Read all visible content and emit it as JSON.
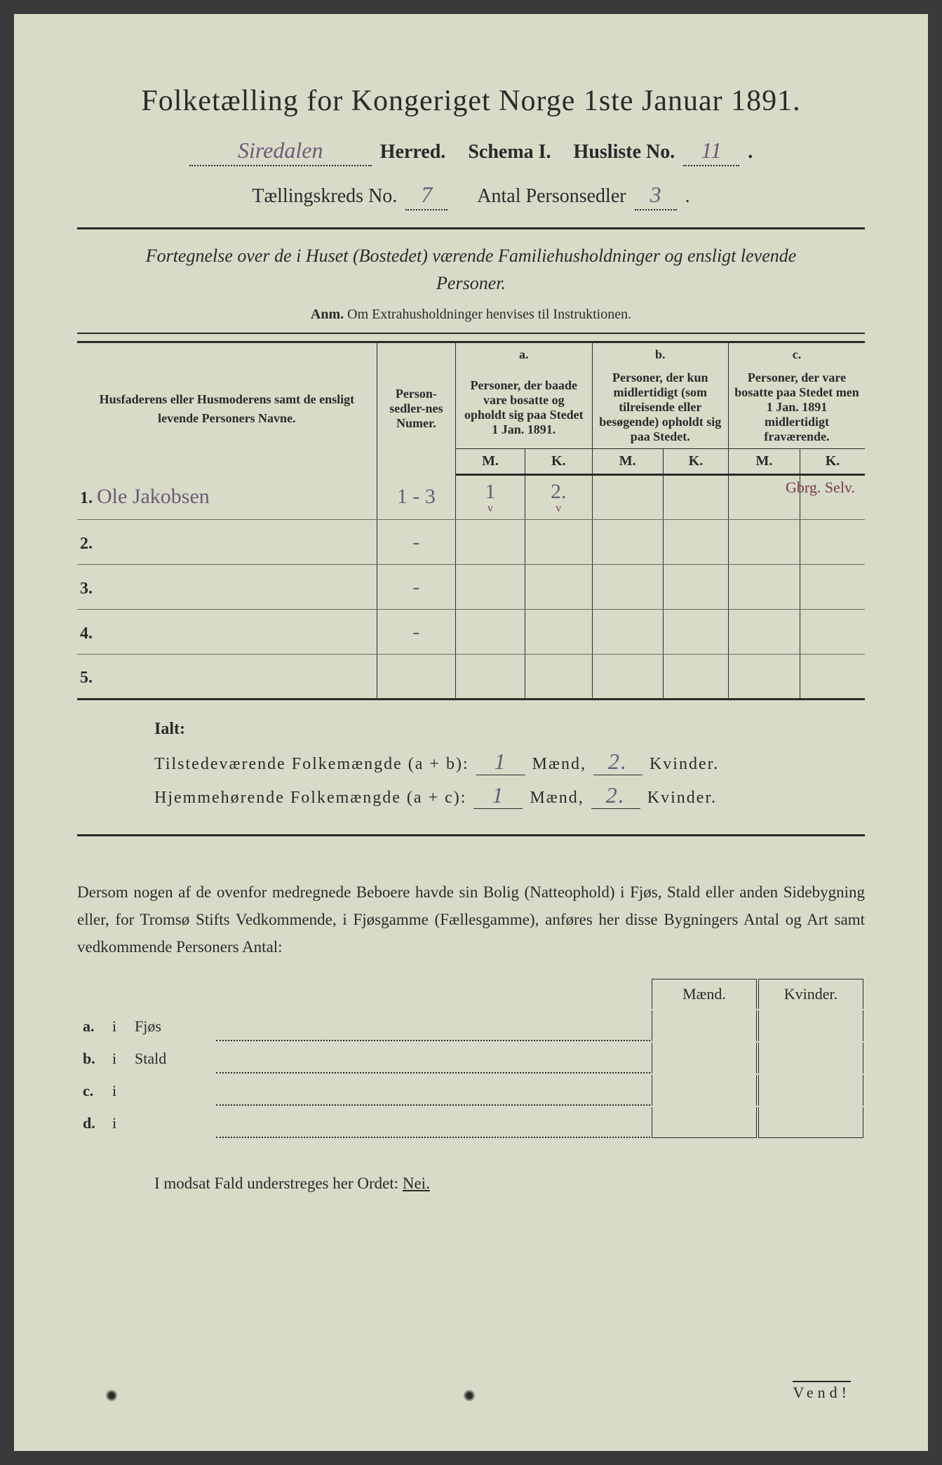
{
  "colors": {
    "paper": "#d8dbc8",
    "ink": "#2a2a2a",
    "handwriting": "#6b5a78",
    "annotation": "#7a3a4a",
    "background": "#3a3a3a"
  },
  "typography": {
    "title_size_pt": 42,
    "body_size_pt": 23,
    "table_header_size_pt": 18,
    "handwritten_size_pt": 30
  },
  "title": "Folketælling for Kongeriget Norge 1ste Januar 1891.",
  "header": {
    "herred_value": "Siredalen",
    "herred_label": "Herred.",
    "schema_label": "Schema I.",
    "husliste_label": "Husliste No.",
    "husliste_value": "11",
    "kreds_label": "Tællingskreds No.",
    "kreds_value": "7",
    "personsedler_label": "Antal Personsedler",
    "personsedler_value": "3"
  },
  "subtitle": "Fortegnelse over de i Huset (Bostedet) værende Familiehusholdninger og ensligt levende Personer.",
  "anm_label": "Anm.",
  "anm_text": "Om Extrahusholdninger henvises til Instruktionen.",
  "table": {
    "col_name": "Husfaderens eller Husmoderens samt de ensligt levende Personers Navne.",
    "col_num": "Person-sedler-nes Numer.",
    "col_a_label": "a.",
    "col_a_text": "Personer, der baade vare bosatte og opholdt sig paa Stedet 1 Jan. 1891.",
    "col_b_label": "b.",
    "col_b_text": "Personer, der kun midlertidigt (som tilreisende eller besøgende) opholdt sig paa Stedet.",
    "col_c_label": "c.",
    "col_c_text": "Personer, der vare bosatte paa Stedet men 1 Jan. 1891 midlertidigt fraværende.",
    "m": "M.",
    "k": "K.",
    "corner_note": "Gbrg. Selv.",
    "rows": [
      {
        "n": "1.",
        "name": "Ole Jakobsen",
        "num": "1 - 3",
        "a_m": "1",
        "a_k": "2.",
        "check_m": "v",
        "check_k": "v"
      },
      {
        "n": "2.",
        "name": "",
        "num": "-",
        "a_m": "",
        "a_k": ""
      },
      {
        "n": "3.",
        "name": "",
        "num": "-",
        "a_m": "",
        "a_k": ""
      },
      {
        "n": "4.",
        "name": "",
        "num": "-",
        "a_m": "",
        "a_k": ""
      },
      {
        "n": "5.",
        "name": "",
        "num": "",
        "a_m": "",
        "a_k": ""
      }
    ]
  },
  "ialt": {
    "label": "Ialt:",
    "line1_label": "Tilstedeværende Folkemængde (a + b):",
    "line1_m": "1",
    "line1_k": "2.",
    "line2_label": "Hjemmehørende Folkemængde (a + c):",
    "line2_m": "1",
    "line2_k": "2.",
    "maend": "Mænd,",
    "kvinder": "Kvinder."
  },
  "paragraph": "Dersom nogen af de ovenfor medregnede Beboere havde sin Bolig (Natteophold) i Fjøs, Stald eller anden Sidebygning eller, for Tromsø Stifts Vedkommende, i Fjøsgamme (Fællesgamme), anføres her disse Bygningers Antal og Art samt vedkommende Personers Antal:",
  "side": {
    "maend": "Mænd.",
    "kvinder": "Kvinder.",
    "rows": [
      {
        "lab": "a.",
        "i": "i",
        "word": "Fjøs"
      },
      {
        "lab": "b.",
        "i": "i",
        "word": "Stald"
      },
      {
        "lab": "c.",
        "i": "i",
        "word": ""
      },
      {
        "lab": "d.",
        "i": "i",
        "word": ""
      }
    ]
  },
  "nei_line_pre": "I modsat Fald understreges her Ordet: ",
  "nei_word": "Nei.",
  "vend": "Vend!"
}
